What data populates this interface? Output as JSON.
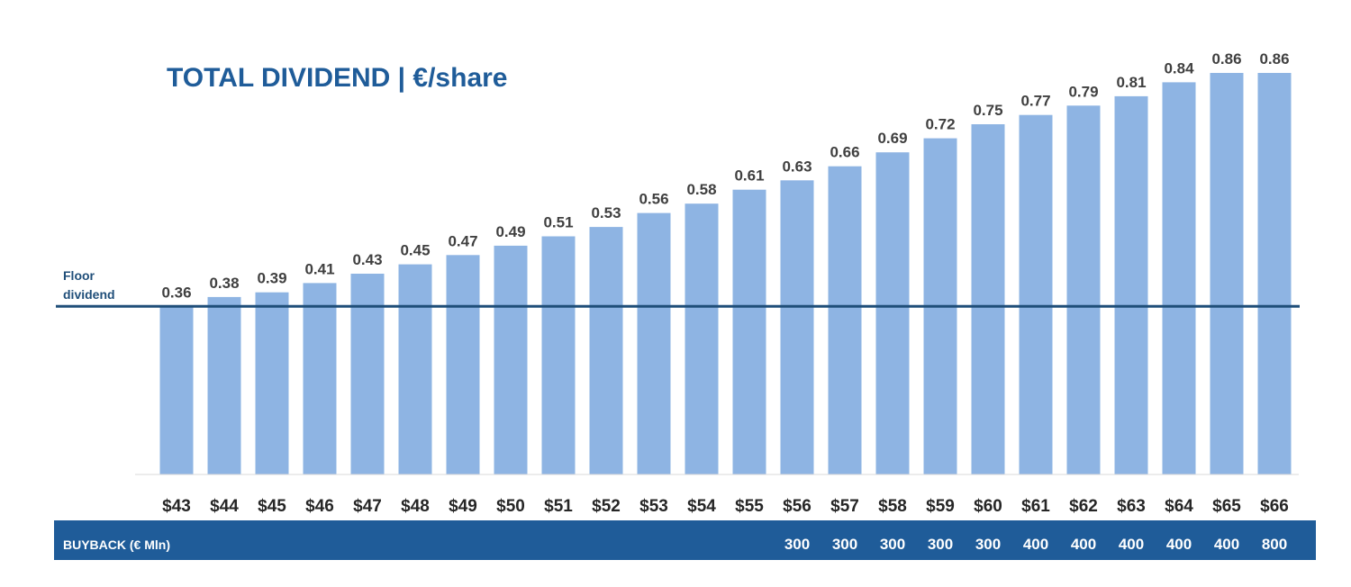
{
  "chart_data": {
    "type": "bar",
    "title": "TOTAL DIVIDEND | €/share",
    "categories": [
      "$43",
      "$44",
      "$45",
      "$46",
      "$47",
      "$48",
      "$49",
      "$50",
      "$51",
      "$52",
      "$53",
      "$54",
      "$55",
      "$56",
      "$57",
      "$58",
      "$59",
      "$60",
      "$61",
      "$62",
      "$63",
      "$64",
      "$65",
      "$66"
    ],
    "values": [
      0.36,
      0.38,
      0.39,
      0.41,
      0.43,
      0.45,
      0.47,
      0.49,
      0.51,
      0.53,
      0.56,
      0.58,
      0.61,
      0.63,
      0.66,
      0.69,
      0.72,
      0.75,
      0.77,
      0.79,
      0.81,
      0.84,
      0.86,
      0.86
    ],
    "value_labels": [
      "0.36",
      "0.38",
      "0.39",
      "0.41",
      "0.43",
      "0.45",
      "0.47",
      "0.49",
      "0.51",
      "0.53",
      "0.56",
      "0.58",
      "0.61",
      "0.63",
      "0.66",
      "0.69",
      "0.72",
      "0.75",
      "0.77",
      "0.79",
      "0.81",
      "0.84",
      "0.86",
      "0.86"
    ],
    "ylim": [
      0,
      0.86
    ],
    "reference_line": {
      "label_line1": "Floor",
      "label_line2": "dividend",
      "value": 0.36
    },
    "buyback": {
      "label": "BUYBACK (€ Mln)",
      "values": [
        "",
        "",
        "",
        "",
        "",
        "",
        "",
        "",
        "",
        "",
        "",
        "",
        "",
        "300",
        "300",
        "300",
        "300",
        "300",
        "400",
        "400",
        "400",
        "400",
        "400",
        "800"
      ]
    },
    "colors": {
      "bar": "#8eb4e3",
      "title": "#1f5c99",
      "floor_line": "#1f4e79",
      "buyback_band": "#1f5c99"
    },
    "grid": false
  }
}
